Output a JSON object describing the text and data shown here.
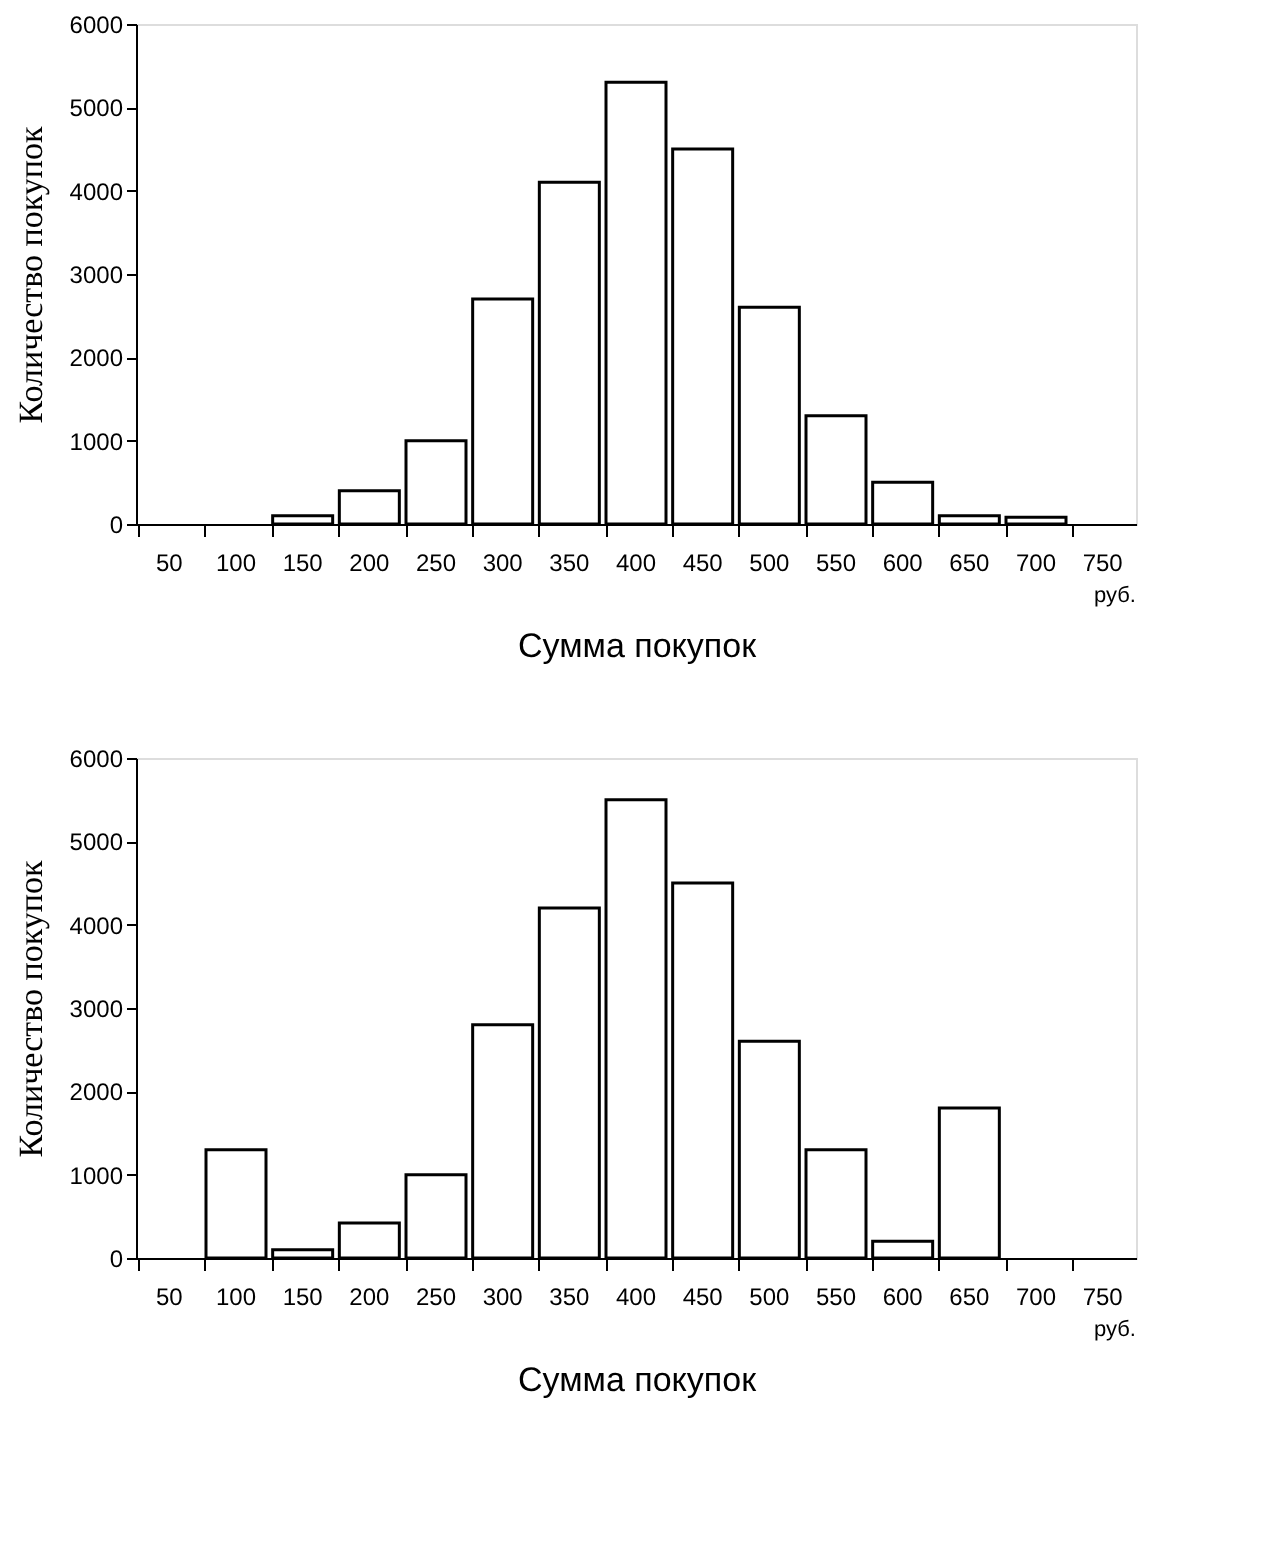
{
  "chart_data": [
    {
      "type": "bar",
      "xlabel": "Сумма покупок",
      "ylabel": "Количество покупок",
      "categories": [
        "50",
        "100",
        "150",
        "200",
        "250",
        "300",
        "350",
        "400",
        "450",
        "500",
        "550",
        "600",
        "650",
        "700",
        "750"
      ],
      "series": [
        {
          "color": "#ffffff",
          "values": [
            0,
            0,
            100,
            400,
            1000,
            2700,
            4100,
            5300,
            4500,
            2600,
            1300,
            500,
            100,
            80,
            0
          ]
        }
      ],
      "ylim": [
        0,
        6000
      ],
      "yticks": [
        0,
        1000,
        2000,
        3000,
        4000,
        5000,
        6000
      ],
      "grid": false,
      "annotations": [
        "руб."
      ]
    },
    {
      "type": "bar",
      "xlabel": "Сумма покупок",
      "ylabel": "Количество покупок",
      "categories": [
        "50",
        "100",
        "150",
        "200",
        "250",
        "300",
        "350",
        "400",
        "450",
        "500",
        "550",
        "600",
        "650",
        "700",
        "750"
      ],
      "series": [
        {
          "color": "#ffffff",
          "values": [
            0,
            1300,
            100,
            420,
            1000,
            2800,
            4200,
            5500,
            4500,
            2600,
            1300,
            200,
            1800,
            0,
            0
          ]
        }
      ],
      "ylim": [
        0,
        6000
      ],
      "yticks": [
        0,
        1000,
        2000,
        3000,
        4000,
        5000,
        6000
      ],
      "grid": false,
      "annotations": [
        "руб."
      ]
    }
  ]
}
